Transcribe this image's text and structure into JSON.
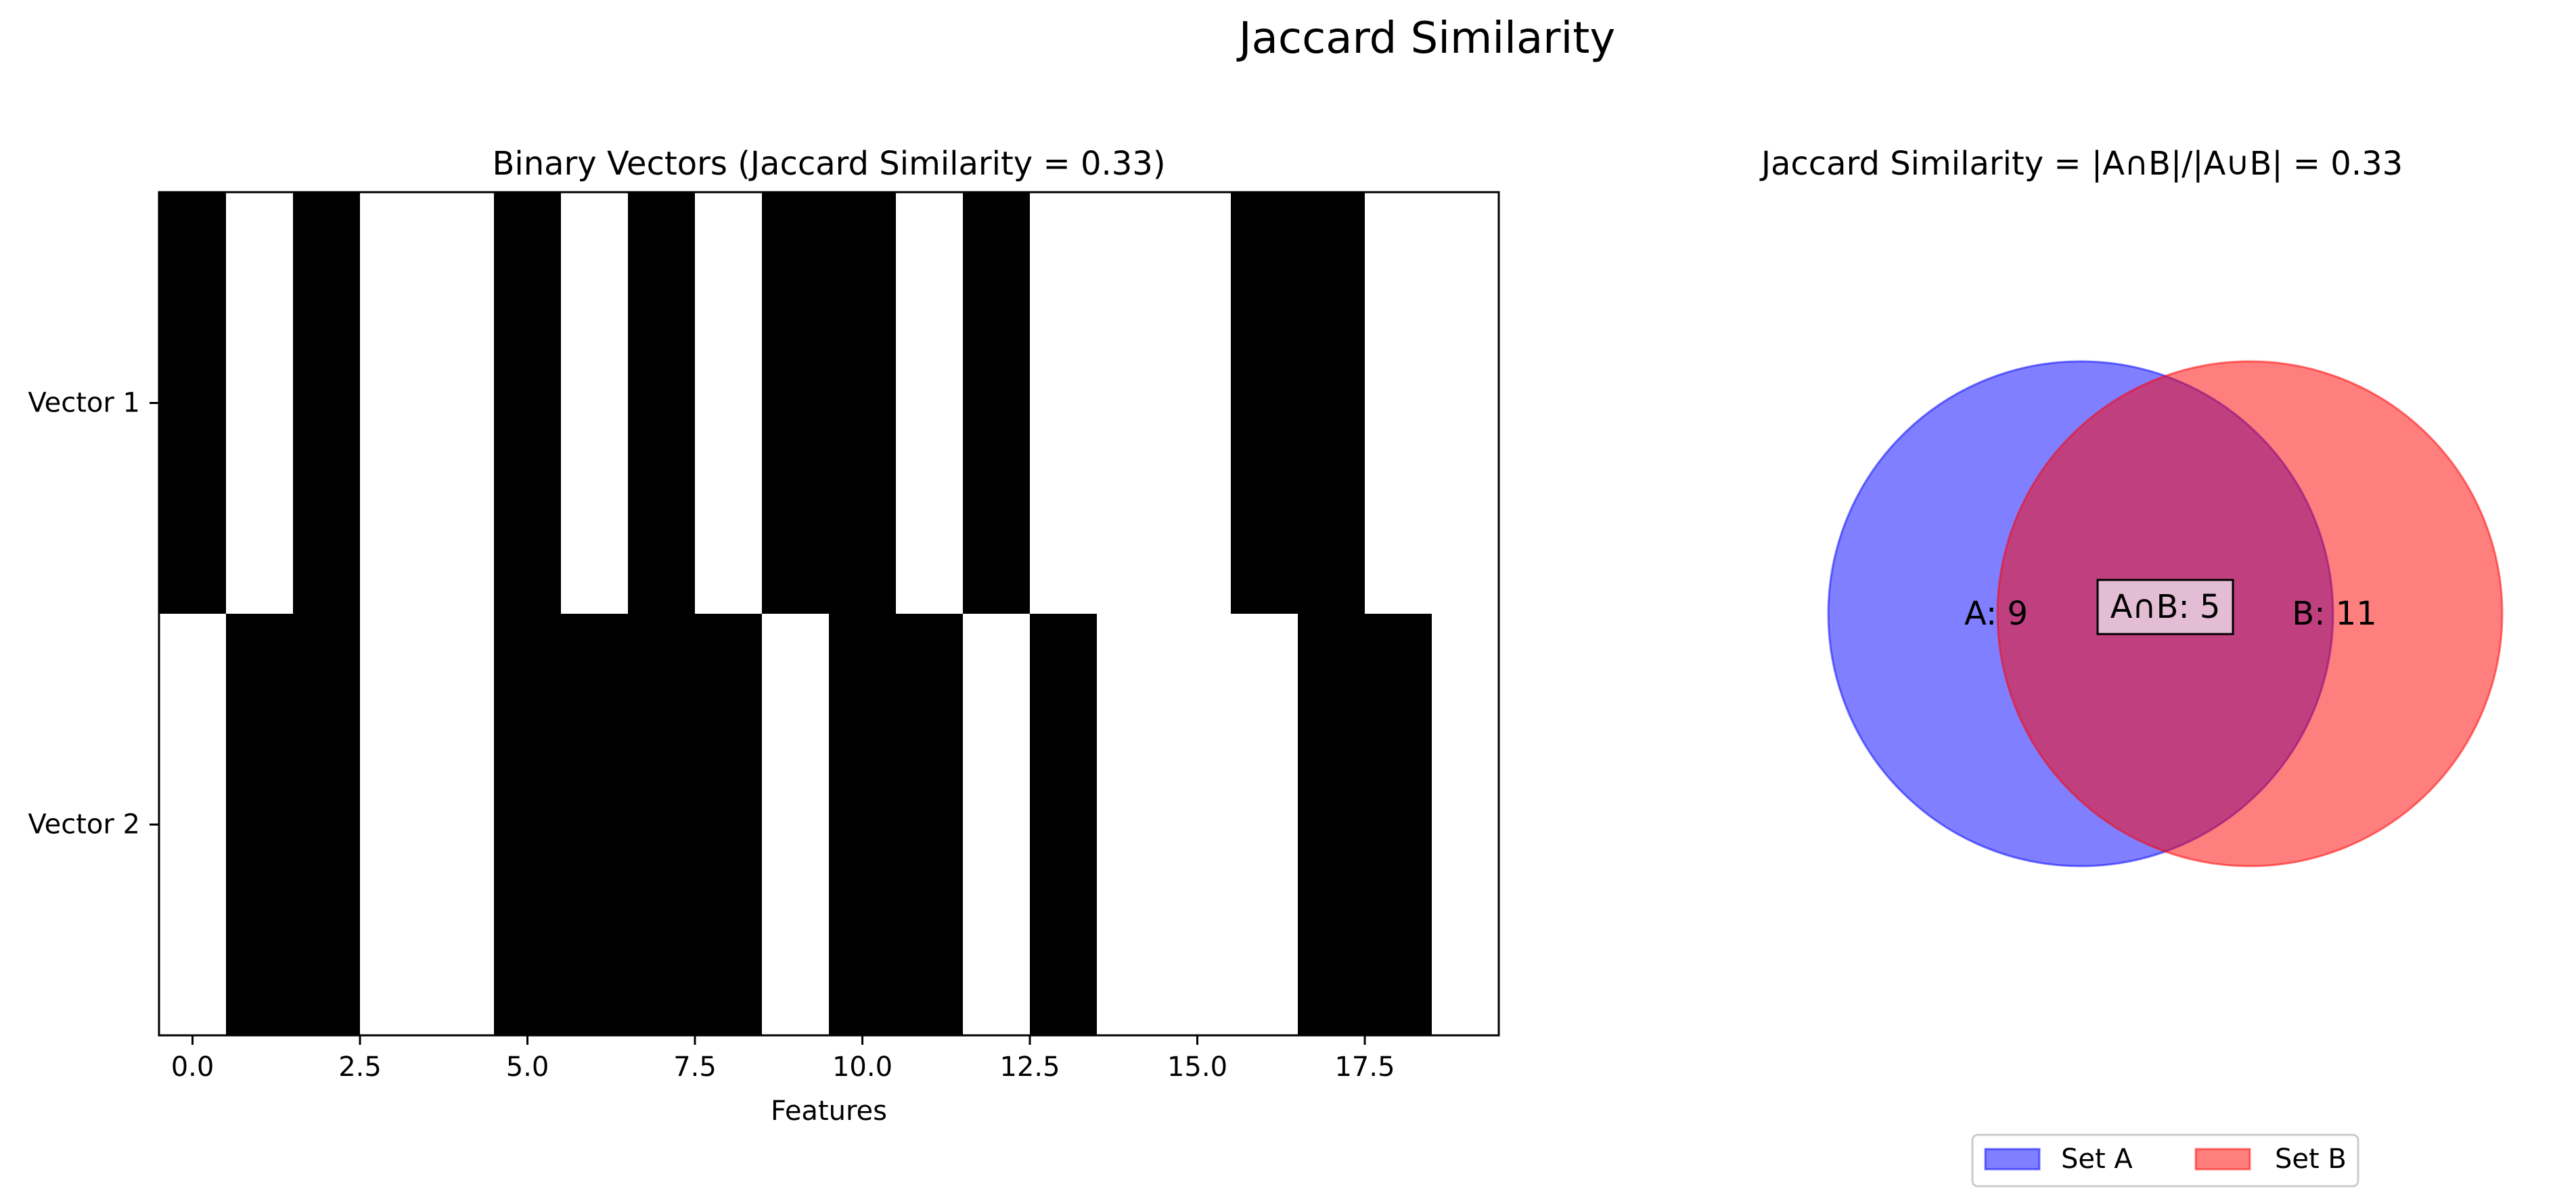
{
  "figure": {
    "suptitle": "Jaccard Similarity"
  },
  "chart_data": [
    {
      "type": "heatmap",
      "title": "Binary Vectors (Jaccard Similarity = 0.33)",
      "xlabel": "Features",
      "ylabel": "",
      "xlim": [
        -0.5,
        19.5
      ],
      "xticks": [
        0.0,
        2.5,
        5.0,
        7.5,
        10.0,
        12.5,
        15.0,
        17.5
      ],
      "xtick_labels": [
        "0.0",
        "2.5",
        "5.0",
        "7.5",
        "10.0",
        "12.5",
        "15.0",
        "17.5"
      ],
      "rows": [
        "Vector 1",
        "Vector 2"
      ],
      "values": [
        [
          1,
          0,
          1,
          0,
          0,
          1,
          0,
          1,
          0,
          1,
          1,
          0,
          1,
          0,
          0,
          0,
          1,
          1,
          0,
          0
        ],
        [
          0,
          1,
          1,
          0,
          0,
          1,
          1,
          1,
          1,
          0,
          1,
          1,
          0,
          1,
          0,
          0,
          0,
          1,
          1,
          0
        ]
      ],
      "colormap": {
        "0": "#ffffff",
        "1": "#000000"
      },
      "grid": false
    },
    {
      "type": "venn",
      "title": "Jaccard Similarity = |A∩B|/|A∪B| = 0.33",
      "sets": [
        {
          "name": "Set A",
          "size": 9,
          "label": "A: 9",
          "color": "#0000ff",
          "alpha": 0.5
        },
        {
          "name": "Set B",
          "size": 11,
          "label": "B: 11",
          "color": "#ff0000",
          "alpha": 0.5
        }
      ],
      "intersection": {
        "size": 5,
        "label": "A∩B: 5"
      },
      "legend": {
        "placement": "bottom-center",
        "entries": [
          "Set A",
          "Set B"
        ]
      }
    }
  ]
}
